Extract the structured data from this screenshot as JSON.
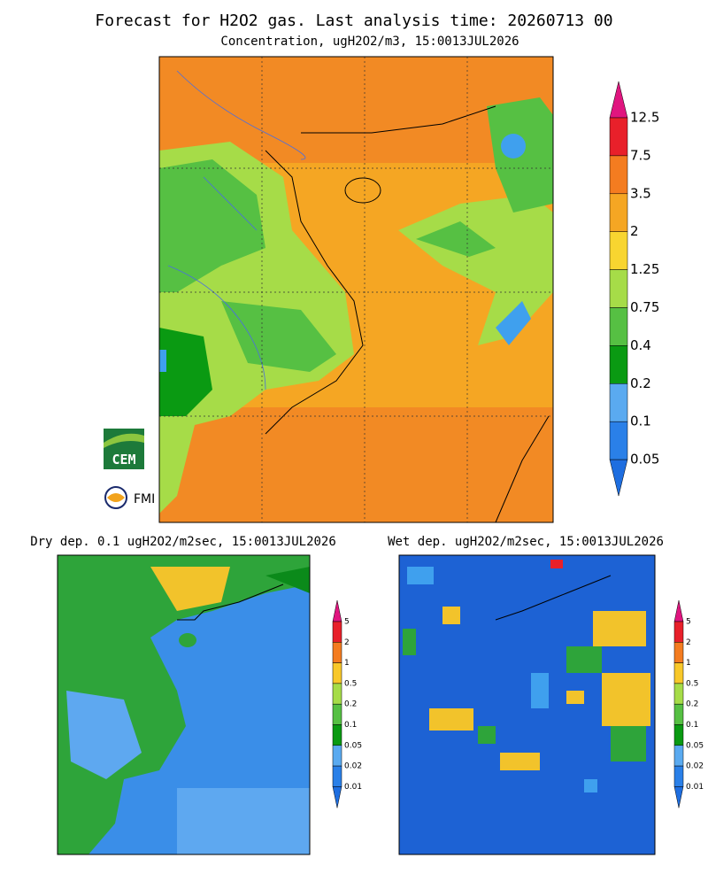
{
  "header": {
    "title": "Forecast for H2O2 gas. Last analysis time: 20260713 00"
  },
  "main": {
    "subtitle": "Concentration, ugH2O2/m3, 15:0013JUL2026",
    "legend": [
      "12.5",
      "7.5",
      "3.5",
      "2",
      "1.25",
      "0.75",
      "0.4",
      "0.2",
      "0.1",
      "0.05"
    ]
  },
  "dry": {
    "title": "Dry dep. 0.1 ugH2O2/m2sec, 15:0013JUL2026",
    "legend": [
      "5",
      "2",
      "1",
      "0.5",
      "0.2",
      "0.1",
      "0.05",
      "0.02",
      "0.01"
    ]
  },
  "wet": {
    "title": "Wet dep. ugH2O2/m2sec, 15:0013JUL2026",
    "legend": [
      "5",
      "2",
      "1",
      "0.5",
      "0.2",
      "0.1",
      "0.05",
      "0.02",
      "0.01"
    ]
  },
  "logos": {
    "cem": "CEM",
    "fmi": "FMI"
  }
}
